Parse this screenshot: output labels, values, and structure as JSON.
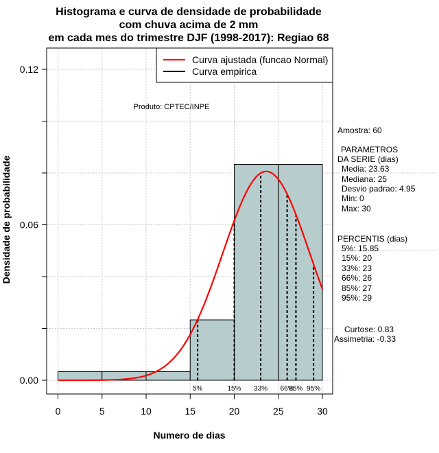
{
  "chart_data": {
    "type": "bar",
    "title_lines": [
      "Histograma e curva de densidade de probabilidade",
      "com chuva acima de 2 mm",
      "em cada mes do trimestre DJF (1998-2017): Regiao 68"
    ],
    "xlabel": "Numero de dias",
    "ylabel": "Densidade de probabilidade",
    "xlim": [
      0,
      30
    ],
    "ylim": [
      0,
      0.12
    ],
    "x_ticks": [
      "0",
      "5",
      "10",
      "15",
      "20",
      "25",
      "30"
    ],
    "y_ticks": [
      "0.00",
      "0.06",
      "0.12"
    ],
    "bins": [
      {
        "from": 0,
        "to": 5,
        "density": 0.0033
      },
      {
        "from": 5,
        "to": 10,
        "density": 0.0033
      },
      {
        "from": 10,
        "to": 15,
        "density": 0.0033
      },
      {
        "from": 15,
        "to": 20,
        "density": 0.0233
      },
      {
        "from": 20,
        "to": 25,
        "density": 0.0833
      },
      {
        "from": 25,
        "to": 30,
        "density": 0.0833
      }
    ],
    "normal_fit": {
      "mean": 23.63,
      "sd": 4.95
    },
    "percentile_lines": [
      {
        "label": "5%",
        "x": 15.85
      },
      {
        "label": "15%",
        "x": 20
      },
      {
        "label": "33%",
        "x": 23
      },
      {
        "label": "66%",
        "x": 26
      },
      {
        "label": "85%",
        "x": 27
      },
      {
        "label": "95%",
        "x": 29
      }
    ],
    "legend": {
      "position": "top-right",
      "entries": [
        {
          "label": "Curva ajustada (funcao Normal)",
          "color": "#ff0000"
        },
        {
          "label": "Curva empirica",
          "color": "#000000"
        }
      ]
    },
    "annotation": "Produto: CPTEC/INPE",
    "grid": true,
    "colors": {
      "bar_fill": "#b7cdcd",
      "curve": "#ff0000",
      "grid": "#c8c8c8"
    }
  },
  "stats_panel": {
    "amostra": "Amostra: 60",
    "parametros_title": "PARAMETROS",
    "parametros_subtitle": "DA SERIE (dias)",
    "media": "Media: 23.63",
    "mediana": "Mediana: 25",
    "desvio": "Desvio padrao: 4.95",
    "min": "Min: 0",
    "max": "Max: 30",
    "percentis_title": "PERCENTIS (dias)",
    "p5": "5%: 15.85",
    "p15": "15%: 20",
    "p33": "33%: 23",
    "p66": "66%: 26",
    "p85": "85%: 27",
    "p95": "95%: 29",
    "curtose": "Curtose: 0.83",
    "assimetria": "Assimetria: -0.33"
  }
}
